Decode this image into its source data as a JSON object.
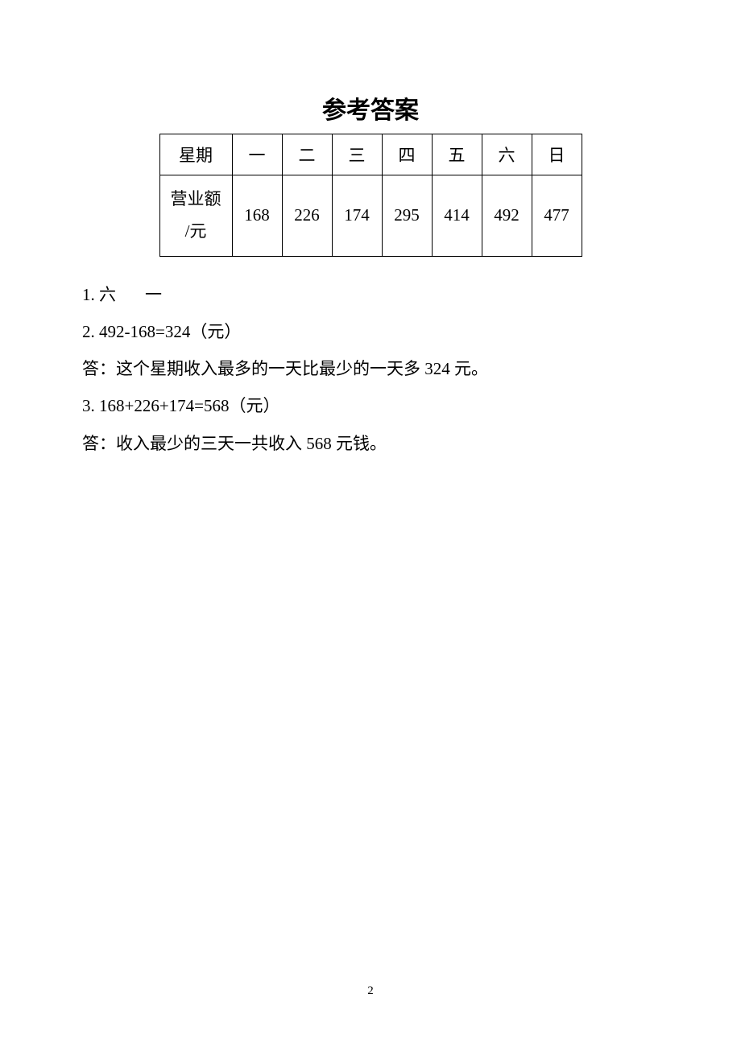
{
  "title": "参考答案",
  "table": {
    "row_header_label": "星期",
    "days": [
      "一",
      "二",
      "三",
      "四",
      "五",
      "六",
      "日"
    ],
    "row_data_label_line1": "营业额",
    "row_data_label_line2": "/元",
    "values": [
      "168",
      "226",
      "174",
      "295",
      "414",
      "492",
      "477"
    ]
  },
  "answers": {
    "q1_prefix": "1. ",
    "q1_a": "六",
    "q1_b": "一",
    "q2_line1": "2. 492-168=324（元）",
    "q2_line2": "答：这个星期收入最多的一天比最少的一天多 324 元。",
    "q3_line1": "3. 168+226+174=568（元）",
    "q3_line2": "答：收入最少的三天一共收入 568 元钱。"
  },
  "page_number": "2"
}
